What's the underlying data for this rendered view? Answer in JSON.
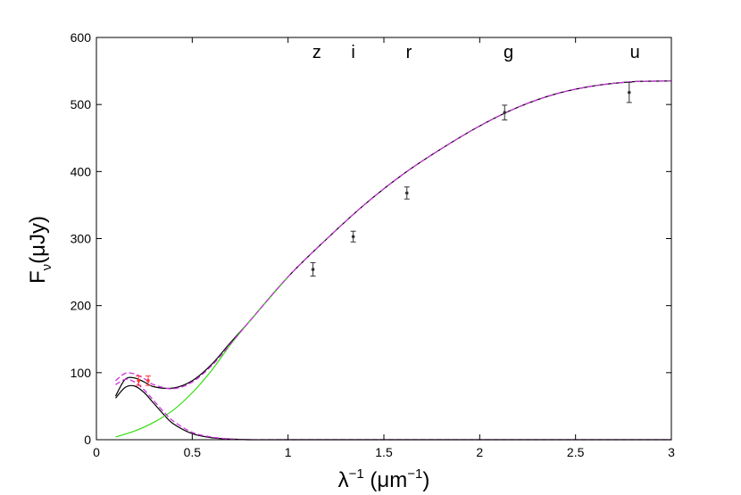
{
  "chart_data": {
    "type": "line",
    "title": "",
    "xlabel": {
      "base": "λ",
      "sup1": "−1",
      "open": " (μm",
      "sup2": "−1",
      "close": ")"
    },
    "ylabel": {
      "base": "F",
      "sub": "ν",
      "rest": "(μJy)"
    },
    "xlim": [
      0,
      3
    ],
    "ylim": [
      0,
      600
    ],
    "xticks": [
      0,
      0.5,
      1,
      1.5,
      2,
      2.5,
      3
    ],
    "xtick_labels": [
      "0",
      "0.5",
      "1",
      "1.5",
      "2",
      "2.5",
      "3"
    ],
    "yticks": [
      0,
      100,
      200,
      300,
      400,
      500,
      600
    ],
    "ytick_labels": [
      "0",
      "100",
      "200",
      "300",
      "400",
      "500",
      "600"
    ],
    "grid": false,
    "band_labels": [
      {
        "label": "z",
        "x": 1.15
      },
      {
        "label": "i",
        "x": 1.34
      },
      {
        "label": "r",
        "x": 1.63
      },
      {
        "label": "g",
        "x": 2.15
      },
      {
        "label": "u",
        "x": 2.81
      }
    ],
    "series": [
      {
        "color": "#000000",
        "style": "solid",
        "x": [
          0.1,
          0.15,
          0.2,
          0.25,
          0.3,
          0.4,
          0.5,
          0.6,
          0.7,
          0.8,
          1.0,
          1.2,
          1.4,
          1.6,
          1.8,
          2.0,
          2.2,
          2.4,
          2.6,
          2.8,
          3.0
        ],
        "y": [
          65,
          90,
          92,
          86,
          79,
          77,
          88,
          112,
          145,
          177,
          243,
          299,
          351,
          396,
          434,
          468,
          496,
          516,
          528,
          534,
          535
        ]
      },
      {
        "color": "#000000",
        "style": "solid",
        "x": [
          0.1,
          0.15,
          0.2,
          0.25,
          0.3,
          0.35,
          0.4,
          0.5,
          0.6,
          0.7,
          0.8,
          1.0,
          3.0
        ],
        "y": [
          62,
          78,
          80,
          70,
          54,
          38,
          24,
          9,
          3,
          1,
          0,
          0,
          0
        ]
      },
      {
        "color": "#33dd11",
        "style": "solid",
        "x": [
          0.1,
          0.2,
          0.3,
          0.4,
          0.5,
          0.6,
          0.7,
          0.8,
          1.0
        ],
        "y": [
          4,
          13,
          26,
          44,
          70,
          103,
          142,
          177,
          243
        ]
      },
      {
        "color": "#cc33dd",
        "style": "dashed",
        "x": [
          0.1,
          0.15,
          0.2,
          0.25,
          0.3,
          0.4,
          0.5,
          0.6,
          0.7,
          0.8,
          1.0,
          1.2,
          1.4,
          1.6,
          1.8,
          2.0,
          2.2,
          2.4,
          2.6,
          2.8,
          3.0
        ],
        "y": [
          88,
          99,
          98,
          91,
          82,
          76,
          86,
          110,
          143,
          177,
          243,
          299,
          351,
          396,
          434,
          468,
          496,
          516,
          528,
          534,
          535
        ]
      },
      {
        "color": "#cc33dd",
        "style": "dashed",
        "x": [
          0.1,
          0.15,
          0.2,
          0.25,
          0.3,
          0.35,
          0.4,
          0.5,
          0.6,
          0.7,
          0.8,
          1.0,
          3.0
        ],
        "y": [
          82,
          90,
          86,
          74,
          58,
          42,
          28,
          11,
          4,
          1,
          0,
          0,
          0
        ]
      }
    ],
    "data_points": [
      {
        "x": 1.13,
        "y": 254,
        "err": 10,
        "color": "#333333"
      },
      {
        "x": 1.34,
        "y": 303,
        "err": 8,
        "color": "#333333"
      },
      {
        "x": 1.62,
        "y": 368,
        "err": 9,
        "color": "#333333"
      },
      {
        "x": 2.13,
        "y": 488,
        "err": 11,
        "color": "#333333"
      },
      {
        "x": 2.78,
        "y": 518,
        "err": 15,
        "color": "#333333"
      }
    ],
    "ir_points": [
      {
        "x": 0.22,
        "y": 88,
        "err": 7,
        "color": "#ff3333"
      },
      {
        "x": 0.27,
        "y": 88,
        "err": 7,
        "color": "#ff3333"
      }
    ]
  }
}
